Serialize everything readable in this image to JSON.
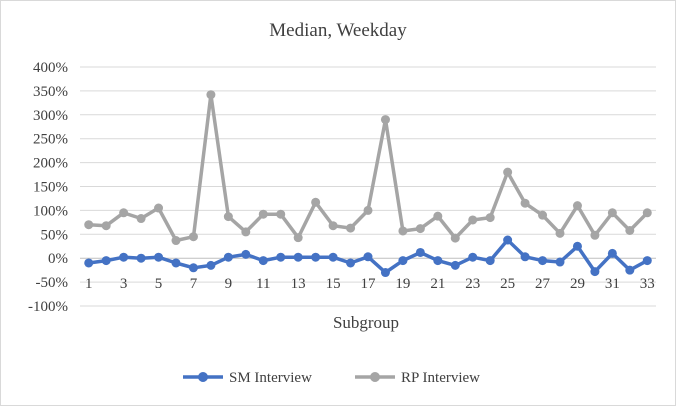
{
  "chart_data": {
    "type": "line",
    "title": "Median, Weekday",
    "xlabel": "Subgroup",
    "ylabel": "",
    "ylim": [
      -100,
      400
    ],
    "y_ticks": [
      -100,
      -50,
      0,
      50,
      100,
      150,
      200,
      250,
      300,
      350,
      400
    ],
    "y_tick_labels": [
      "-100%",
      "-50%",
      "0%",
      "50%",
      "100%",
      "150%",
      "200%",
      "250%",
      "300%",
      "350%",
      "400%"
    ],
    "x": [
      1,
      2,
      3,
      4,
      5,
      6,
      7,
      8,
      9,
      10,
      11,
      12,
      13,
      14,
      15,
      16,
      17,
      18,
      19,
      20,
      21,
      22,
      23,
      24,
      25,
      26,
      27,
      28,
      29,
      30,
      31,
      32,
      33
    ],
    "x_tick_labels": [
      "1",
      "3",
      "5",
      "7",
      "9",
      "11",
      "13",
      "15",
      "17",
      "19",
      "21",
      "23",
      "25",
      "27",
      "29",
      "31",
      "33"
    ],
    "grid": true,
    "legend_position": "bottom",
    "series": [
      {
        "name": "SM Interview",
        "color": "#4472C4",
        "values": [
          -10,
          -5,
          2,
          0,
          2,
          -10,
          -20,
          -15,
          2,
          8,
          -5,
          2,
          2,
          2,
          2,
          -10,
          3,
          -30,
          -5,
          12,
          -5,
          -15,
          2,
          -5,
          38,
          3,
          -5,
          -8,
          25,
          -28,
          10,
          -25,
          -5
        ]
      },
      {
        "name": "RP Interview",
        "color": "#A5A5A5",
        "values": [
          70,
          68,
          95,
          83,
          105,
          37,
          45,
          342,
          87,
          55,
          92,
          92,
          43,
          117,
          68,
          63,
          100,
          290,
          57,
          62,
          88,
          42,
          80,
          85,
          180,
          115,
          90,
          52,
          110,
          48,
          95,
          58,
          95
        ]
      }
    ]
  }
}
